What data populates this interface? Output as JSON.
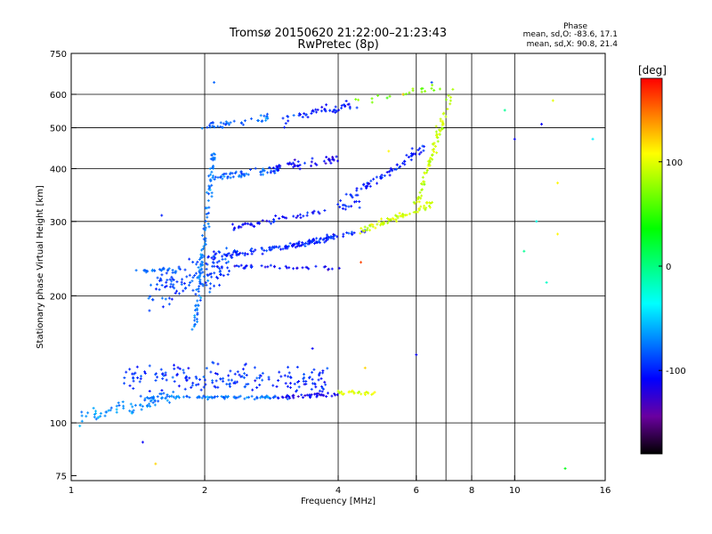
{
  "chart_data": {
    "type": "scatter",
    "title": "Tromsø 20150620 21:22:00–21:23:43",
    "subtitle": "RwPretec (8p)",
    "xlabel": "Frequency [MHz]",
    "ylabel": "Stationary phase Virtual Height [km]",
    "xscale": "log",
    "yscale": "log",
    "xlim": [
      1,
      16
    ],
    "ylim": [
      73,
      750
    ],
    "x_ticks": [
      1,
      2,
      4,
      6,
      8,
      10,
      16
    ],
    "x_tick_labels": [
      "1",
      "2",
      "4",
      "6",
      "8",
      "10",
      "16"
    ],
    "y_ticks": [
      75,
      100,
      200,
      300,
      400,
      500,
      600,
      750
    ],
    "y_tick_labels": [
      "75",
      "100",
      "200",
      "300",
      "400",
      "500",
      "600",
      "750"
    ],
    "x_gridlines": [
      2,
      4,
      6,
      7,
      8,
      10
    ],
    "y_gridlines": [
      100,
      200,
      300,
      400,
      500,
      600
    ],
    "grid": true,
    "stats": {
      "header": "Phase",
      "line_o": "mean, sd,O: -83.6, 17.1",
      "line_x": "mean, sd,X:  90.8, 21.4"
    },
    "colorbar": {
      "label": "[deg]",
      "placement": "right",
      "min": -180,
      "max": 180,
      "ticks": [
        100,
        0,
        -100
      ],
      "tick_labels": [
        "100",
        "0",
        "-100"
      ],
      "colors": [
        "#000000",
        "#6a00a0",
        "#0000ff",
        "#0080ff",
        "#00ffff",
        "#00ff80",
        "#00ff00",
        "#80ff00",
        "#ffff00",
        "#ff8000",
        "#ff0000"
      ]
    },
    "traces": [
      {
        "name": "",
        "from": [
          1.02,
          102
        ],
        "to": [
          1.7,
          115
        ],
        "n": 70,
        "phase": -70,
        "spread_y": 0.06
      },
      {
        "name": "",
        "from": [
          1.5,
          115
        ],
        "to": [
          2.9,
          115
        ],
        "n": 80,
        "phase": -75,
        "spread_y": 0.012
      },
      {
        "name": "",
        "from": [
          2.9,
          115
        ],
        "to": [
          4.0,
          117
        ],
        "n": 40,
        "phase": -115,
        "spread_y": 0.015
      },
      {
        "name": "",
        "from": [
          4.0,
          118
        ],
        "to": [
          4.8,
          118
        ],
        "n": 25,
        "phase": 95,
        "spread_y": 0.015
      },
      {
        "name": "",
        "from": [
          1.3,
          130
        ],
        "to": [
          3.8,
          125
        ],
        "n": 180,
        "phase": -95,
        "spread_y": 0.12
      },
      {
        "name": "",
        "from": [
          1.5,
          200
        ],
        "to": [
          2.3,
          240
        ],
        "n": 120,
        "phase": -90,
        "spread_y": 0.14
      },
      {
        "name": "",
        "from": [
          1.9,
          170
        ],
        "to": [
          2.1,
          450
        ],
        "n": 110,
        "phase": -75,
        "spread_y": 0.05
      },
      {
        "name": "",
        "from": [
          1.4,
          230
        ],
        "to": [
          1.8,
          230
        ],
        "n": 25,
        "phase": -80,
        "spread_y": 0.015
      },
      {
        "name": "",
        "from": [
          2.0,
          245
        ],
        "to": [
          4.0,
          275
        ],
        "n": 90,
        "phase": -95,
        "spread_y": 0.03
      },
      {
        "name": "",
        "from": [
          2.1,
          235
        ],
        "to": [
          4.0,
          232
        ],
        "n": 40,
        "phase": -110,
        "spread_y": 0.015
      },
      {
        "name": "",
        "from": [
          3.0,
          260
        ],
        "to": [
          4.6,
          285
        ],
        "n": 60,
        "phase": -100,
        "spread_y": 0.02
      },
      {
        "name": "",
        "from": [
          4.5,
          285
        ],
        "to": [
          6.5,
          330
        ],
        "n": 70,
        "phase": 95,
        "spread_y": 0.03
      },
      {
        "name": "",
        "from": [
          6.0,
          330
        ],
        "to": [
          7.2,
          600
        ],
        "n": 80,
        "phase": 90,
        "spread_y": 0.05
      },
      {
        "name": "",
        "from": [
          2.3,
          290
        ],
        "to": [
          4.5,
          330
        ],
        "n": 60,
        "phase": -105,
        "spread_y": 0.03
      },
      {
        "name": "",
        "from": [
          4.0,
          330
        ],
        "to": [
          6.3,
          450
        ],
        "n": 70,
        "phase": -100,
        "spread_y": 0.04
      },
      {
        "name": "",
        "from": [
          2.1,
          380
        ],
        "to": [
          3.0,
          400
        ],
        "n": 50,
        "phase": -80,
        "spread_y": 0.03
      },
      {
        "name": "",
        "from": [
          2.8,
          400
        ],
        "to": [
          4.0,
          420
        ],
        "n": 50,
        "phase": -110,
        "spread_y": 0.04
      },
      {
        "name": "",
        "from": [
          2.0,
          500
        ],
        "to": [
          2.8,
          530
        ],
        "n": 40,
        "phase": -80,
        "spread_y": 0.025
      },
      {
        "name": "",
        "from": [
          3.0,
          520
        ],
        "to": [
          4.4,
          570
        ],
        "n": 50,
        "phase": -100,
        "spread_y": 0.04
      },
      {
        "name": "",
        "from": [
          4.4,
          580
        ],
        "to": [
          6.8,
          620
        ],
        "n": 20,
        "phase": 70,
        "spread_y": 0.04
      }
    ],
    "outliers": [
      {
        "x": 2.1,
        "y": 640,
        "phase": -80
      },
      {
        "x": 1.45,
        "y": 90,
        "phase": -110
      },
      {
        "x": 1.55,
        "y": 80,
        "phase": 120
      },
      {
        "x": 1.6,
        "y": 310,
        "phase": -100
      },
      {
        "x": 9.5,
        "y": 550,
        "phase": -5
      },
      {
        "x": 10.0,
        "y": 470,
        "phase": -110
      },
      {
        "x": 11.5,
        "y": 510,
        "phase": -110
      },
      {
        "x": 12.2,
        "y": 580,
        "phase": 100
      },
      {
        "x": 12.5,
        "y": 370,
        "phase": 110
      },
      {
        "x": 11.2,
        "y": 300,
        "phase": -30
      },
      {
        "x": 12.5,
        "y": 280,
        "phase": 110
      },
      {
        "x": 11.8,
        "y": 215,
        "phase": -20
      },
      {
        "x": 15.0,
        "y": 470,
        "phase": -40
      },
      {
        "x": 13.0,
        "y": 78,
        "phase": 30
      },
      {
        "x": 4.5,
        "y": 240,
        "phase": 160
      },
      {
        "x": 5.2,
        "y": 440,
        "phase": 110
      },
      {
        "x": 6.0,
        "y": 145,
        "phase": -110
      },
      {
        "x": 4.6,
        "y": 135,
        "phase": 120
      },
      {
        "x": 3.5,
        "y": 150,
        "phase": -110
      },
      {
        "x": 10.5,
        "y": 255,
        "phase": -5
      },
      {
        "x": 5.6,
        "y": 600,
        "phase": 130
      },
      {
        "x": 6.5,
        "y": 640,
        "phase": -90
      }
    ]
  }
}
